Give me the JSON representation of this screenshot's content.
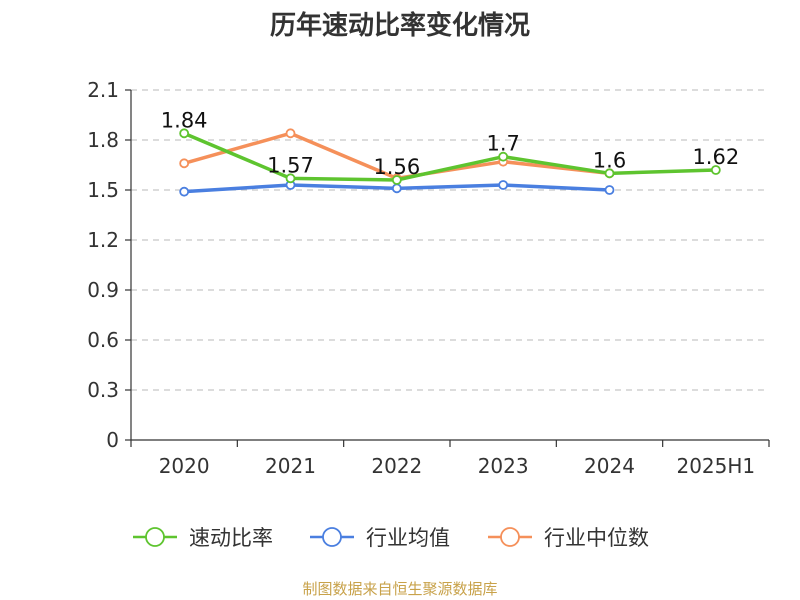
{
  "chart_data": {
    "type": "line",
    "title": "历年速动比率变化情况",
    "categories": [
      "2020",
      "2021",
      "2022",
      "2023",
      "2024",
      "2025H1"
    ],
    "ylim": [
      0,
      2.1
    ],
    "yticks": [
      "0",
      "0.3",
      "0.6",
      "0.9",
      "1.2",
      "1.5",
      "1.8",
      "2.1"
    ],
    "grid": true,
    "legend_position": "bottom",
    "series": [
      {
        "name": "速动比率",
        "color": "#5ec42f",
        "values": [
          1.84,
          1.57,
          1.56,
          1.7,
          1.6,
          1.62
        ],
        "labels": [
          "1.84",
          "1.57",
          "1.56",
          "1.7",
          "1.6",
          "1.62"
        ],
        "show_labels": true
      },
      {
        "name": "行业均值",
        "color": "#4a7fe0",
        "values": [
          1.49,
          1.53,
          1.51,
          1.53,
          1.5,
          null
        ],
        "show_labels": false
      },
      {
        "name": "行业中位数",
        "color": "#f5905a",
        "values": [
          1.66,
          1.84,
          1.57,
          1.67,
          1.6,
          null
        ],
        "show_labels": false
      }
    ],
    "source": "制图数据来自恒生聚源数据库"
  }
}
